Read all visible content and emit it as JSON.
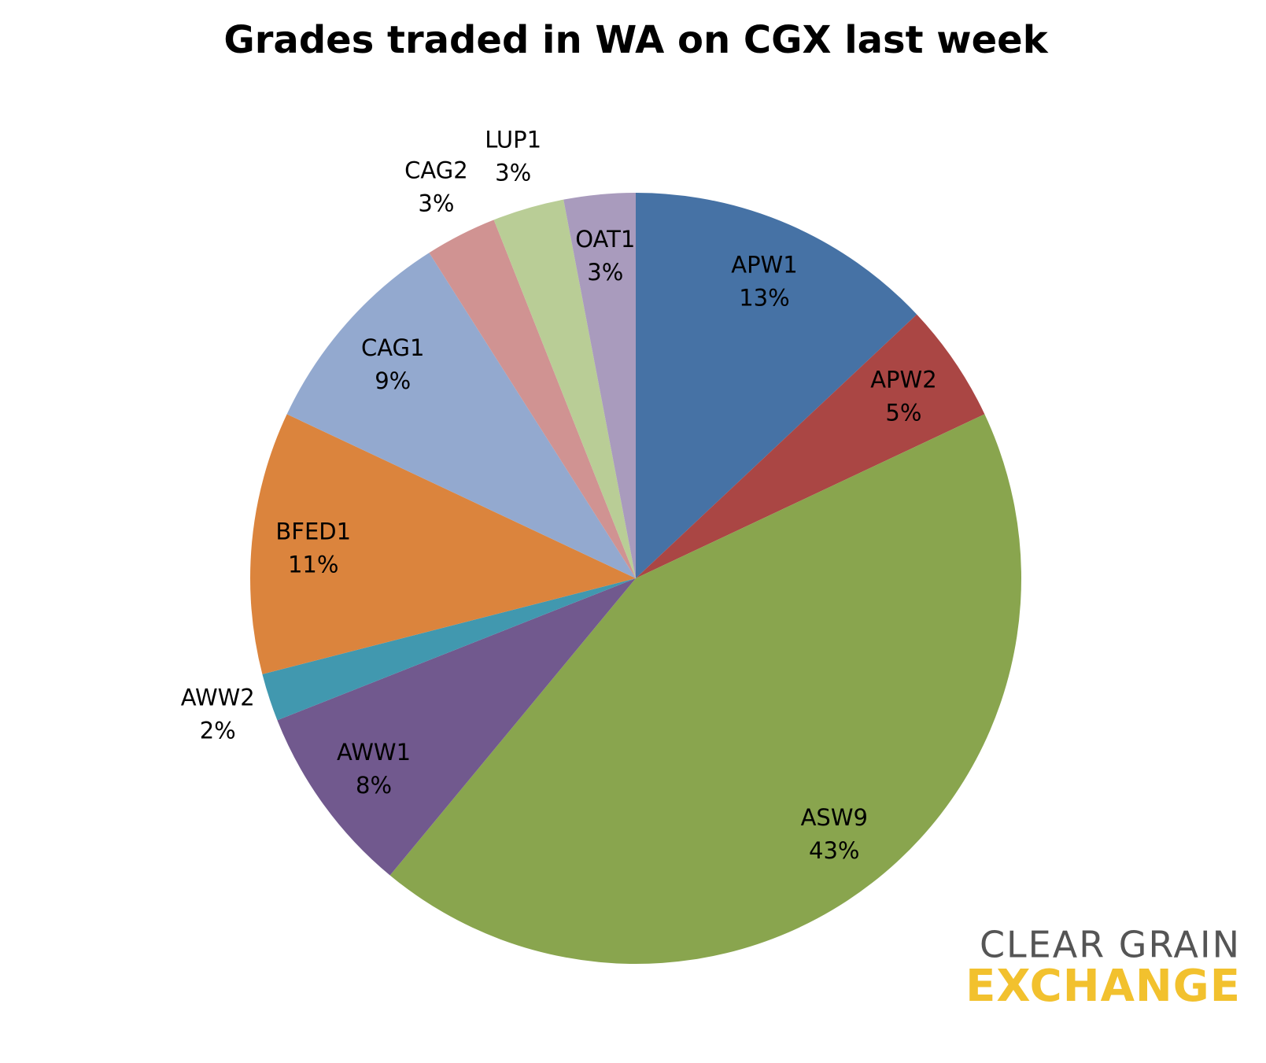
{
  "chart_data": {
    "type": "pie",
    "title": "Grades traded in WA on CGX last week",
    "categories": [
      "APW1",
      "APW2",
      "ASW9",
      "AWW1",
      "AWW2",
      "BFED1",
      "CAG1",
      "CAG2",
      "LUP1",
      "OAT1"
    ],
    "values": [
      13,
      5,
      43,
      8,
      2,
      11,
      9,
      3,
      3,
      3
    ],
    "value_labels": [
      "13%",
      "5%",
      "43%",
      "8%",
      "2%",
      "11%",
      "9%",
      "3%",
      "3%",
      "3%"
    ],
    "colors": [
      "#4672a5",
      "#aa4644",
      "#89a54e",
      "#71598e",
      "#4198af",
      "#db843d",
      "#93a9cf",
      "#d09392",
      "#b9cd96",
      "#a99bbd"
    ]
  },
  "logo": {
    "line1": "CLEAR GRAIN",
    "line2": "EXCHANGE"
  }
}
